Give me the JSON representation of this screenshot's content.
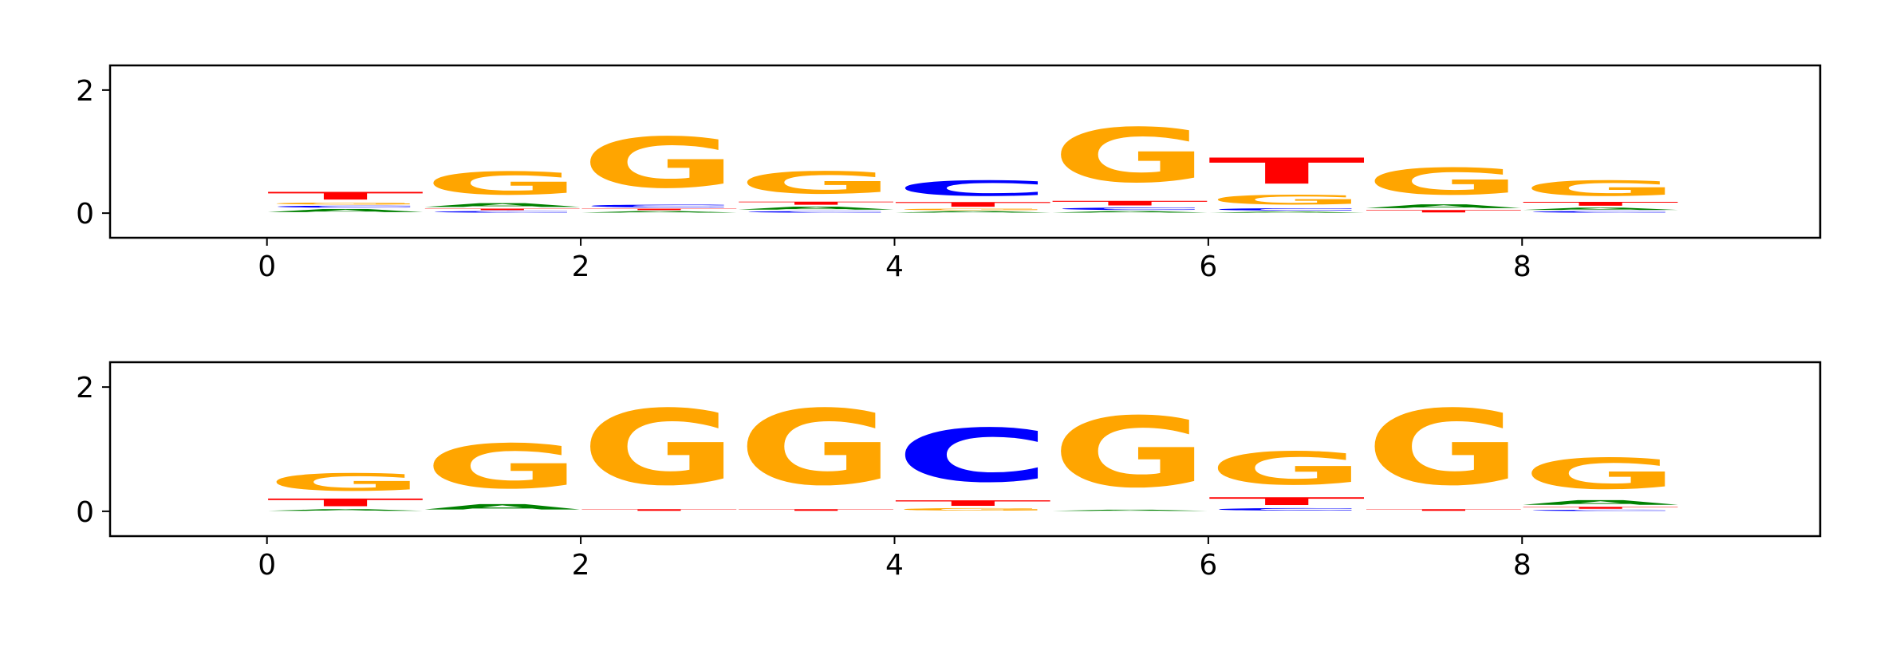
{
  "colors": {
    "A": "#008000",
    "C": "#0000ff",
    "G": "#ffa500",
    "T": "#ff0000",
    "axis": "#000000"
  },
  "chart_data": [
    {
      "type": "sequence-logo",
      "title": "",
      "xlabel": "",
      "ylabel": "",
      "xlim": [
        -1,
        9.9
      ],
      "ylim": [
        -0.4,
        2.4
      ],
      "xticks": [
        "0",
        "2",
        "4",
        "6",
        "8"
      ],
      "yticks": [
        "0",
        "2"
      ],
      "positions": [
        {
          "x": 0,
          "letters": [
            {
              "base": "A",
              "height": 0.08
            },
            {
              "base": "C",
              "height": 0.05
            },
            {
              "base": "G",
              "height": 0.05
            },
            {
              "base": "T",
              "height": 0.2
            }
          ]
        },
        {
          "x": 1,
          "letters": [
            {
              "base": "C",
              "height": 0.04
            },
            {
              "base": "T",
              "height": 0.04
            },
            {
              "base": "A",
              "height": 0.1
            },
            {
              "base": "G",
              "height": 0.6
            }
          ]
        },
        {
          "x": 2,
          "letters": [
            {
              "base": "A",
              "height": 0.04
            },
            {
              "base": "T",
              "height": 0.04
            },
            {
              "base": "C",
              "height": 0.07
            },
            {
              "base": "G",
              "height": 1.32
            }
          ]
        },
        {
          "x": 3,
          "letters": [
            {
              "base": "C",
              "height": 0.04
            },
            {
              "base": "A",
              "height": 0.08
            },
            {
              "base": "T",
              "height": 0.08
            },
            {
              "base": "G",
              "height": 0.58
            }
          ]
        },
        {
          "x": 4,
          "letters": [
            {
              "base": "A",
              "height": 0.04
            },
            {
              "base": "G",
              "height": 0.04
            },
            {
              "base": "T",
              "height": 0.12
            },
            {
              "base": "C",
              "height": 0.4
            }
          ]
        },
        {
          "x": 5,
          "letters": [
            {
              "base": "A",
              "height": 0.04
            },
            {
              "base": "C",
              "height": 0.06
            },
            {
              "base": "T",
              "height": 0.12
            },
            {
              "base": "G",
              "height": 1.42
            }
          ]
        },
        {
          "x": 6,
          "letters": [
            {
              "base": "A",
              "height": 0.03
            },
            {
              "base": "C",
              "height": 0.06
            },
            {
              "base": "G",
              "height": 0.25
            },
            {
              "base": "T",
              "height": 0.68
            }
          ]
        },
        {
          "x": 7,
          "letters": [
            {
              "base": "T",
              "height": 0.06
            },
            {
              "base": "A",
              "height": 0.1
            },
            {
              "base": "G",
              "height": 0.7
            }
          ]
        },
        {
          "x": 8,
          "letters": [
            {
              "base": "C",
              "height": 0.04
            },
            {
              "base": "A",
              "height": 0.06
            },
            {
              "base": "T",
              "height": 0.1
            },
            {
              "base": "G",
              "height": 0.4
            }
          ]
        }
      ]
    },
    {
      "type": "sequence-logo",
      "title": "",
      "xlabel": "",
      "ylabel": "",
      "xlim": [
        -1,
        9.9
      ],
      "ylim": [
        -0.4,
        2.4
      ],
      "xticks": [
        "0",
        "2",
        "4",
        "6",
        "8"
      ],
      "yticks": [
        "0",
        "2"
      ],
      "positions": [
        {
          "x": 0,
          "letters": [
            {
              "base": "A",
              "height": 0.04
            },
            {
              "base": "T",
              "height": 0.2
            },
            {
              "base": "G",
              "height": 0.45
            }
          ]
        },
        {
          "x": 1,
          "letters": [
            {
              "base": "A",
              "height": 0.14
            },
            {
              "base": "G",
              "height": 1.15
            }
          ]
        },
        {
          "x": 2,
          "letters": [
            {
              "base": "T",
              "height": 0.04
            },
            {
              "base": "G",
              "height": 1.95
            }
          ]
        },
        {
          "x": 3,
          "letters": [
            {
              "base": "T",
              "height": 0.04
            },
            {
              "base": "G",
              "height": 1.95
            }
          ]
        },
        {
          "x": 4,
          "letters": [
            {
              "base": "G",
              "height": 0.06
            },
            {
              "base": "T",
              "height": 0.14
            },
            {
              "base": "C",
              "height": 1.38
            }
          ]
        },
        {
          "x": 5,
          "letters": [
            {
              "base": "A",
              "height": 0.03
            },
            {
              "base": "G",
              "height": 1.82
            }
          ]
        },
        {
          "x": 6,
          "letters": [
            {
              "base": "C",
              "height": 0.06
            },
            {
              "base": "T",
              "height": 0.2
            },
            {
              "base": "G",
              "height": 0.85
            }
          ]
        },
        {
          "x": 7,
          "letters": [
            {
              "base": "T",
              "height": 0.04
            },
            {
              "base": "G",
              "height": 1.95
            }
          ]
        },
        {
          "x": 8,
          "letters": [
            {
              "base": "C",
              "height": 0.03
            },
            {
              "base": "T",
              "height": 0.05
            },
            {
              "base": "A",
              "height": 0.12
            },
            {
              "base": "G",
              "height": 0.8
            }
          ]
        }
      ]
    }
  ]
}
